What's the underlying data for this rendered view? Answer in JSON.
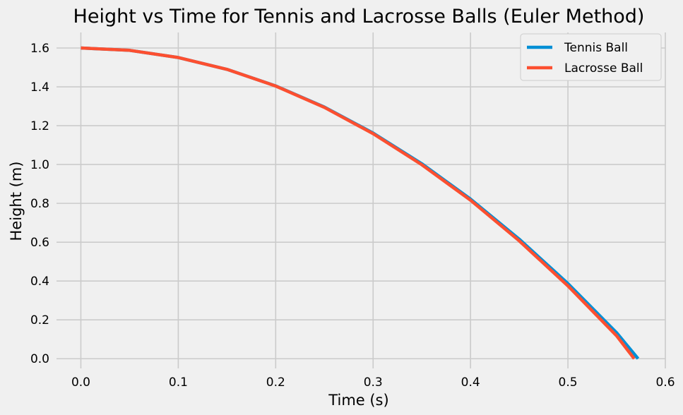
{
  "chart_data": {
    "type": "line",
    "title": "Height vs Time for Tennis and Lacrosse Balls (Euler Method)",
    "xlabel": "Time (s)",
    "ylabel": "Height (m)",
    "xlim": [
      -0.025,
      0.6
    ],
    "ylim": [
      -0.05,
      1.68
    ],
    "xticks": [
      0.0,
      0.1,
      0.2,
      0.3,
      0.4,
      0.5,
      0.6
    ],
    "xtick_labels": [
      "0.0",
      "0.1",
      "0.2",
      "0.3",
      "0.4",
      "0.5",
      "0.6"
    ],
    "yticks": [
      0.0,
      0.2,
      0.4,
      0.6,
      0.8,
      1.0,
      1.2,
      1.4,
      1.6
    ],
    "ytick_labels": [
      "0.0",
      "0.2",
      "0.4",
      "0.6",
      "0.8",
      "1.0",
      "1.2",
      "1.4",
      "1.6"
    ],
    "grid": true,
    "legend_position": "top-right",
    "series": [
      {
        "name": "Tennis Ball",
        "color": "#008fd5",
        "x": [
          0.0,
          0.05,
          0.1,
          0.15,
          0.2,
          0.25,
          0.3,
          0.35,
          0.4,
          0.45,
          0.5,
          0.55,
          0.572
        ],
        "y": [
          1.6,
          1.588,
          1.551,
          1.49,
          1.405,
          1.296,
          1.162,
          1.004,
          0.822,
          0.616,
          0.387,
          0.134,
          0.0
        ]
      },
      {
        "name": "Lacrosse Ball",
        "color": "#fc4f30",
        "x": [
          0.0,
          0.05,
          0.1,
          0.15,
          0.2,
          0.25,
          0.3,
          0.35,
          0.4,
          0.45,
          0.5,
          0.55,
          0.568
        ],
        "y": [
          1.6,
          1.588,
          1.551,
          1.49,
          1.404,
          1.294,
          1.159,
          0.999,
          0.816,
          0.607,
          0.375,
          0.118,
          0.0
        ]
      }
    ]
  }
}
